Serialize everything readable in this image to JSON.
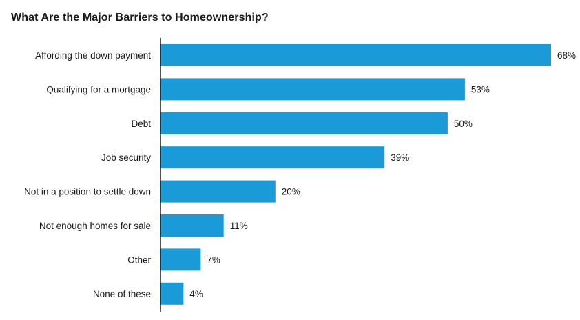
{
  "chart_data": {
    "type": "bar",
    "orientation": "horizontal",
    "title": "What Are the Major Barriers to Homeownership?",
    "categories": [
      "Affording the down payment",
      "Qualifying for a mortgage",
      "Debt",
      "Job security",
      "Not in a position to settle down",
      "Not enough homes for sale",
      "Other",
      "None of these"
    ],
    "values": [
      68,
      53,
      50,
      39,
      20,
      11,
      7,
      4
    ],
    "value_labels": [
      "68%",
      "53%",
      "50%",
      "39%",
      "20%",
      "11%",
      "7%",
      "4%"
    ],
    "bar_color": "#1a9ad6",
    "axis_color": "#1a1a1a",
    "grid": false,
    "legend": "none",
    "xlim": [
      0,
      68
    ]
  }
}
